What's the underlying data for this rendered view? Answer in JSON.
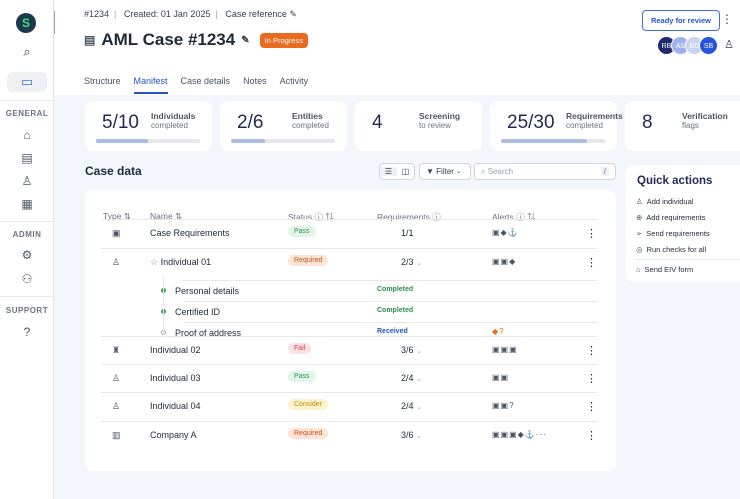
{
  "sidebar": {
    "sections": [
      "GENERAL",
      "ADMIN",
      "SUPPORT"
    ]
  },
  "header": {
    "case_id": "#1234",
    "created": "Created: 01 Jan 2025",
    "reference": "Case reference",
    "title": "AML Case #1234",
    "status": "In Progress",
    "ready_button": "Ready for review",
    "avatars": [
      {
        "initials": "RB",
        "color": "#1e2a6b"
      },
      {
        "initials": "AS",
        "color": "#9fb1ee"
      },
      {
        "initials": "BD",
        "color": "#c7d3f0"
      },
      {
        "initials": "SB",
        "color": "#2454e0"
      }
    ]
  },
  "tabs": [
    {
      "label": "Structure"
    },
    {
      "label": "Manifest",
      "active": true
    },
    {
      "label": "Case details"
    },
    {
      "label": "Notes"
    },
    {
      "label": "Activity"
    }
  ],
  "stats": [
    {
      "value": "5/10",
      "label": "Individuals",
      "sub": "completed",
      "progress": 0.5
    },
    {
      "value": "2/6",
      "label": "Entities",
      "sub": "completed",
      "progress": 0.33
    },
    {
      "value": "4",
      "label": "Screening",
      "sub": "to review"
    },
    {
      "value": "25/30",
      "label": "Requirements",
      "sub": "completed",
      "progress": 0.83
    },
    {
      "value": "8",
      "label": "Verification",
      "sub": "flags"
    }
  ],
  "case_data": {
    "title": "Case data",
    "filter": "Filter",
    "search_placeholder": "Search",
    "search_shortcut": "/",
    "columns": [
      "Type",
      "Name",
      "Status",
      "Requirements",
      "Alerts"
    ],
    "rows": [
      {
        "name": "Case Requirements",
        "status": "Pass",
        "req": "1/1",
        "alerts": "▣◆⚓"
      },
      {
        "name": "Individual 01",
        "status": "Required",
        "req": "2/3",
        "alerts": "▣▣◆"
      },
      {
        "name": "Individual 02",
        "status": "Fail",
        "req": "3/6",
        "alerts": "▣▣▣"
      },
      {
        "name": "Individual 03",
        "status": "Pass",
        "req": "2/4",
        "alerts": "▣▣"
      },
      {
        "name": "Individual 04",
        "status": "Consider",
        "req": "2/4",
        "alerts": "▣▣?"
      },
      {
        "name": "Company A",
        "status": "Required",
        "req": "3/6",
        "alerts": "▣▣▣◆⚓···"
      }
    ],
    "subrows": [
      {
        "name": "Personal details",
        "status": "Completed"
      },
      {
        "name": "Certified ID",
        "status": "Completed"
      },
      {
        "name": "Proof of address",
        "status": "Received",
        "alerts": "◆?"
      }
    ]
  },
  "quick_actions": {
    "title": "Quick actions",
    "items": [
      "Add individual",
      "Add requirements",
      "Send requirements",
      "Run checks for all",
      "Send EIV form"
    ]
  }
}
